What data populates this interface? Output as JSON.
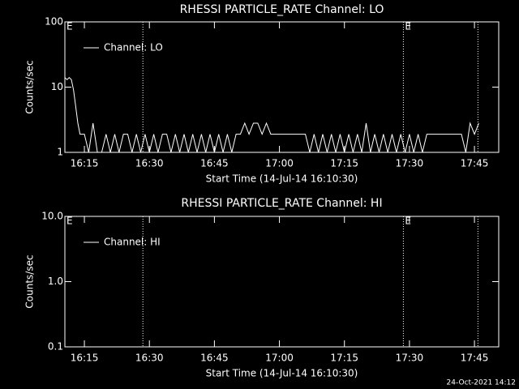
{
  "chart_data": [
    {
      "type": "line",
      "title": "RHESSI PARTICLE_RATE Channel: LO",
      "xlabel": "Start Time (14-Jul-14 16:10:30)",
      "ylabel": "Counts/sec",
      "log_y": true,
      "legend": "upper left",
      "xlim": [
        "16:10:30",
        "17:50:36"
      ],
      "ylim": [
        1,
        100
      ],
      "xticks": [
        "16:15",
        "16:30",
        "16:45",
        "17:00",
        "17:15",
        "17:30",
        "17:45"
      ],
      "yticks": [
        1,
        10,
        100
      ],
      "vlines": [
        "16:28:30",
        "17:28:36",
        "17:45:48"
      ],
      "annotations": [
        {
          "x": "16:10:30",
          "label": "E"
        },
        {
          "x": "17:28:36",
          "label": "E"
        }
      ],
      "x": [
        "16:10:30",
        "16:11",
        "16:11:30",
        "16:12",
        "16:12:30",
        "16:13",
        "16:13:30",
        "16:14",
        "16:15",
        "16:16",
        "16:17",
        "16:18",
        "16:19",
        "16:20",
        "16:21",
        "16:22",
        "16:23",
        "16:24",
        "16:25",
        "16:26",
        "16:27",
        "16:28",
        "16:29",
        "16:30",
        "16:31",
        "16:32",
        "16:33",
        "16:34",
        "16:35",
        "16:36",
        "16:37",
        "16:38",
        "16:39",
        "16:40",
        "16:41",
        "16:42",
        "16:43",
        "16:44",
        "16:45",
        "16:46",
        "16:47",
        "16:48",
        "16:49",
        "16:50",
        "16:51",
        "16:52",
        "16:53",
        "16:54",
        "16:55",
        "16:56",
        "16:57",
        "16:58",
        "16:59",
        "17:00",
        "17:01",
        "17:02",
        "17:03",
        "17:04",
        "17:05",
        "17:06",
        "17:07",
        "17:08",
        "17:09",
        "17:10",
        "17:11",
        "17:12",
        "17:13",
        "17:14",
        "17:15",
        "17:16",
        "17:17",
        "17:18",
        "17:19",
        "17:20",
        "17:21",
        "17:22",
        "17:23",
        "17:24",
        "17:25",
        "17:26",
        "17:27",
        "17:28",
        "17:29",
        "17:30",
        "17:31",
        "17:32",
        "17:33",
        "17:34",
        "17:35",
        "17:36",
        "17:37",
        "17:38",
        "17:39",
        "17:40",
        "17:41",
        "17:42",
        "17:43",
        "17:44",
        "17:45",
        "17:46"
      ],
      "series": [
        {
          "name": "Channel: LO",
          "color": "#ffffff",
          "values": [
            14,
            13,
            14,
            13,
            9,
            5,
            2.8,
            1.9,
            1.9,
            1,
            2.8,
            1,
            1,
            1.9,
            1,
            1.9,
            1,
            1.9,
            1.9,
            1,
            1.9,
            1,
            1.9,
            1,
            1.9,
            1,
            1.9,
            1.9,
            1,
            1.9,
            1,
            1.9,
            1,
            1.9,
            1,
            1.9,
            1,
            1.9,
            1,
            1.9,
            1,
            1.9,
            1,
            1.9,
            1.9,
            2.8,
            1.9,
            2.8,
            2.8,
            1.9,
            2.8,
            1.9,
            1.9,
            1.9,
            1.9,
            1.9,
            1.9,
            1.9,
            1.9,
            1.9,
            1,
            1.9,
            1,
            1.9,
            1,
            1.9,
            1,
            1.9,
            1,
            1.9,
            1,
            1.9,
            1,
            2.8,
            1,
            1.9,
            1,
            1.9,
            1,
            1.9,
            1,
            1.9,
            1,
            1.9,
            1,
            1.9,
            1,
            1.9,
            1.9,
            1.9,
            1.9,
            1.9,
            1.9,
            1.9,
            1.9,
            1.9,
            1,
            2.8,
            1.9,
            2.8
          ]
        }
      ]
    },
    {
      "type": "line",
      "title": "RHESSI PARTICLE_RATE Channel: HI",
      "xlabel": "Start Time (14-Jul-14 16:10:30)",
      "ylabel": "Counts/sec",
      "log_y": true,
      "legend": "upper left",
      "xlim": [
        "16:10:30",
        "17:50:36"
      ],
      "ylim": [
        0.1,
        10
      ],
      "xticks": [
        "16:15",
        "16:30",
        "16:45",
        "17:00",
        "17:15",
        "17:30",
        "17:45"
      ],
      "yticks": [
        {
          "value": 0.1,
          "label": "0.1"
        },
        {
          "value": 1,
          "label": "1.0"
        },
        {
          "value": 10,
          "label": "10.0"
        }
      ],
      "vlines": [
        "16:28:30",
        "17:28:36",
        "17:45:48"
      ],
      "annotations": [
        {
          "x": "16:10:30",
          "label": "E"
        },
        {
          "x": "17:28:36",
          "label": "E"
        }
      ],
      "x": [],
      "series": [
        {
          "name": "Channel: HI",
          "color": "#ffffff",
          "values": []
        }
      ]
    }
  ],
  "footer": "24-Oct-2021 14:12"
}
